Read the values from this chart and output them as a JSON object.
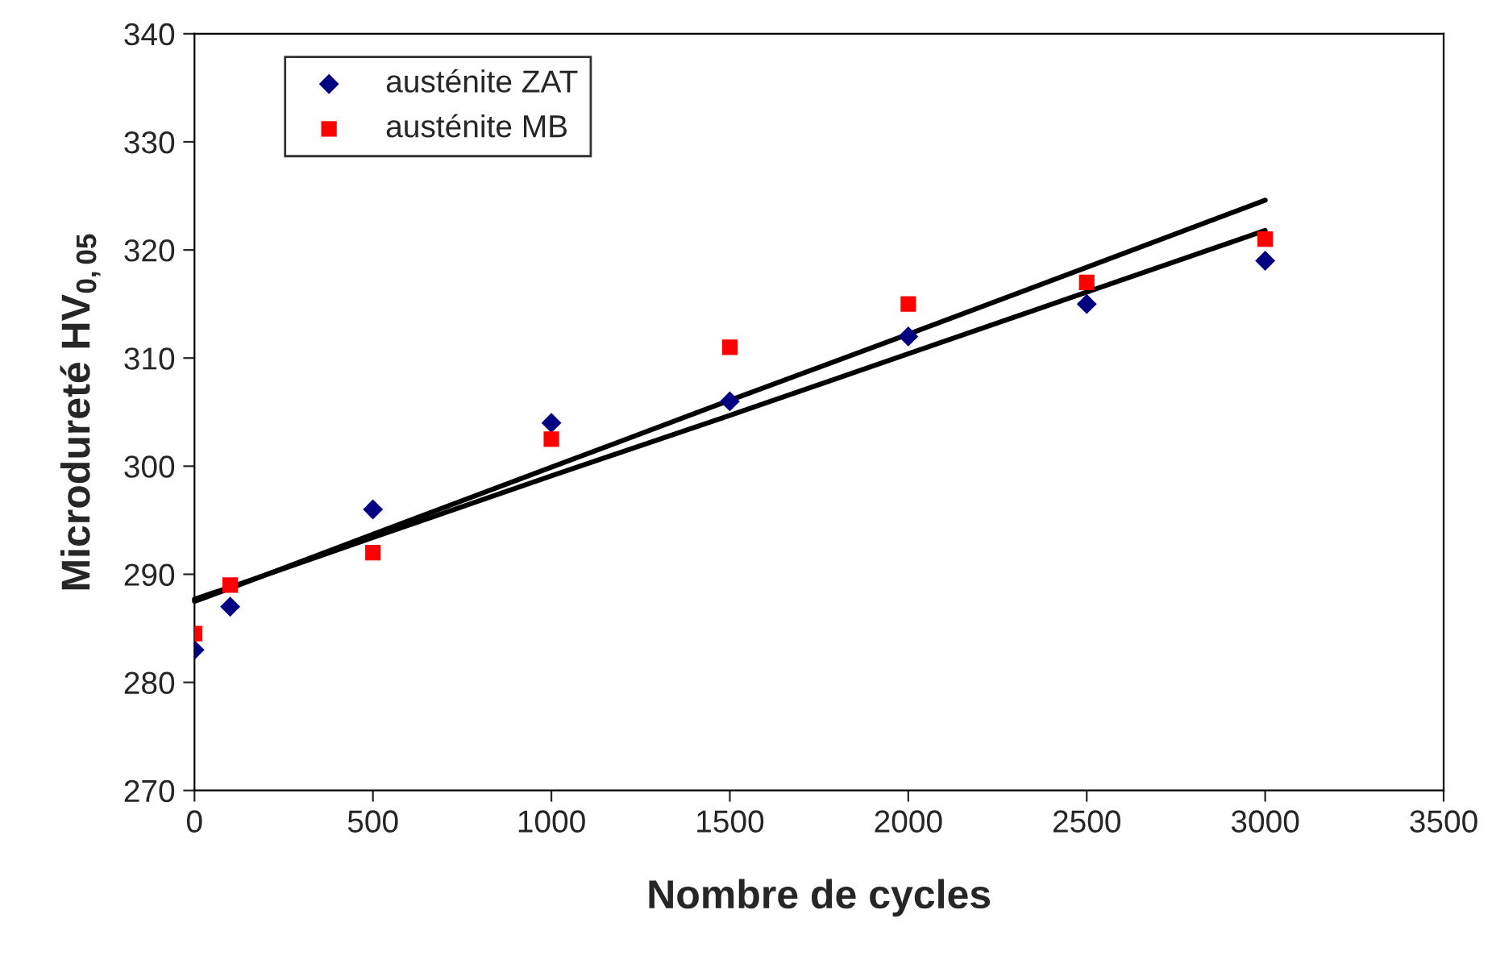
{
  "chart_data": {
    "type": "scatter",
    "xlabel": "Nombre de cycles",
    "ylabel": "Microdureté HV$_{0,05}$",
    "x": [
      0,
      100,
      500,
      1000,
      1500,
      2000,
      2500,
      3000
    ],
    "series": [
      {
        "name": "austénite ZAT",
        "color": "#000080",
        "marker": "diamond",
        "values": [
          283,
          287,
          296,
          304,
          306,
          312,
          315,
          319
        ]
      },
      {
        "name": "austénite MB",
        "color": "#ff0000",
        "marker": "square",
        "values": [
          284.5,
          289,
          292,
          302.5,
          311,
          315,
          317,
          321
        ]
      },
      {
        "type": "line",
        "color": "#000000",
        "marker": "none",
        "line_style": "solid",
        "values": [
          287.7,
          288.8,
          293.4,
          299.1,
          304.7,
          310.4,
          316.1,
          321.8
        ]
      },
      {
        "type": "line",
        "color": "#000000",
        "marker": "none",
        "line_style": "solid",
        "values": [
          287.5,
          288.7,
          293.7,
          299.9,
          306.1,
          312.2,
          318.4,
          324.6
        ]
      }
    ],
    "xlim": [
      0,
      3500
    ],
    "xticks": [
      0,
      500,
      1000,
      1500,
      2000,
      2500,
      3000,
      3500
    ],
    "ylim": [
      270,
      340
    ],
    "yticks": [
      270,
      280,
      290,
      300,
      310,
      320,
      330,
      340
    ],
    "grid": false,
    "legend": "top left"
  }
}
